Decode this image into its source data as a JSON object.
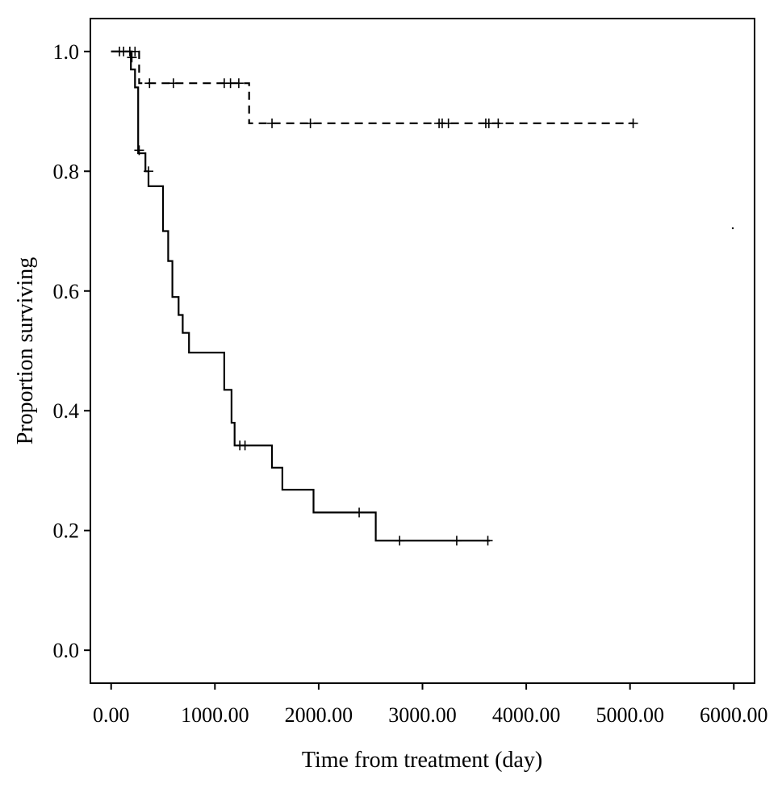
{
  "chart_data": {
    "type": "line",
    "subtype": "kaplan-meier-step",
    "xlabel": "Time from treatment (day)",
    "ylabel": "Proportion surviving",
    "xlim": [
      -200,
      6200
    ],
    "ylim": [
      -0.055,
      1.055
    ],
    "x_ticks": [
      0,
      1000,
      2000,
      3000,
      4000,
      5000,
      6000
    ],
    "x_tick_labels": [
      "0.00",
      "1000.00",
      "2000.00",
      "3000.00",
      "4000.00",
      "5000.00",
      "6000.00"
    ],
    "y_ticks": [
      0.0,
      0.2,
      0.4,
      0.6,
      0.8,
      1.0
    ],
    "y_tick_labels": [
      "0.0",
      "0.2",
      "0.4",
      "0.6",
      "0.8",
      "1.0"
    ],
    "grid": false,
    "legend": "none",
    "series": [
      {
        "line_style": "dashed",
        "color": "#000000",
        "steps": [
          [
            0,
            1.0
          ],
          [
            270,
            1.0
          ],
          [
            270,
            0.947
          ],
          [
            1330,
            0.947
          ],
          [
            1330,
            0.88
          ],
          [
            5030,
            0.88
          ]
        ],
        "censored": [
          [
            80,
            1.0
          ],
          [
            120,
            1.0
          ],
          [
            180,
            1.0
          ],
          [
            230,
            1.0
          ],
          [
            370,
            0.947
          ],
          [
            600,
            0.947
          ],
          [
            1090,
            0.947
          ],
          [
            1150,
            0.947
          ],
          [
            1230,
            0.947
          ],
          [
            1550,
            0.88
          ],
          [
            1920,
            0.88
          ],
          [
            3160,
            0.88
          ],
          [
            3190,
            0.88
          ],
          [
            3250,
            0.88
          ],
          [
            3610,
            0.88
          ],
          [
            3640,
            0.88
          ],
          [
            3730,
            0.88
          ],
          [
            5030,
            0.88
          ]
        ]
      },
      {
        "line_style": "solid",
        "color": "#000000",
        "steps": [
          [
            0,
            1.0
          ],
          [
            190,
            1.0
          ],
          [
            190,
            0.97
          ],
          [
            230,
            0.97
          ],
          [
            230,
            0.94
          ],
          [
            260,
            0.94
          ],
          [
            260,
            0.83
          ],
          [
            330,
            0.83
          ],
          [
            330,
            0.8
          ],
          [
            360,
            0.8
          ],
          [
            360,
            0.775
          ],
          [
            500,
            0.775
          ],
          [
            500,
            0.7
          ],
          [
            550,
            0.7
          ],
          [
            550,
            0.65
          ],
          [
            590,
            0.65
          ],
          [
            590,
            0.59
          ],
          [
            650,
            0.59
          ],
          [
            650,
            0.56
          ],
          [
            690,
            0.56
          ],
          [
            690,
            0.53
          ],
          [
            750,
            0.53
          ],
          [
            750,
            0.497
          ],
          [
            1090,
            0.497
          ],
          [
            1090,
            0.435
          ],
          [
            1160,
            0.435
          ],
          [
            1160,
            0.38
          ],
          [
            1190,
            0.38
          ],
          [
            1190,
            0.342
          ],
          [
            1550,
            0.342
          ],
          [
            1550,
            0.305
          ],
          [
            1650,
            0.305
          ],
          [
            1650,
            0.268
          ],
          [
            1950,
            0.268
          ],
          [
            1950,
            0.23
          ],
          [
            2550,
            0.23
          ],
          [
            2550,
            0.183
          ],
          [
            3650,
            0.183
          ]
        ],
        "censored": [
          [
            200,
            0.99
          ],
          [
            270,
            0.835
          ],
          [
            360,
            0.8
          ],
          [
            1240,
            0.342
          ],
          [
            1290,
            0.342
          ],
          [
            2390,
            0.23
          ],
          [
            2780,
            0.183
          ],
          [
            3330,
            0.183
          ],
          [
            3630,
            0.183
          ]
        ]
      }
    ]
  }
}
